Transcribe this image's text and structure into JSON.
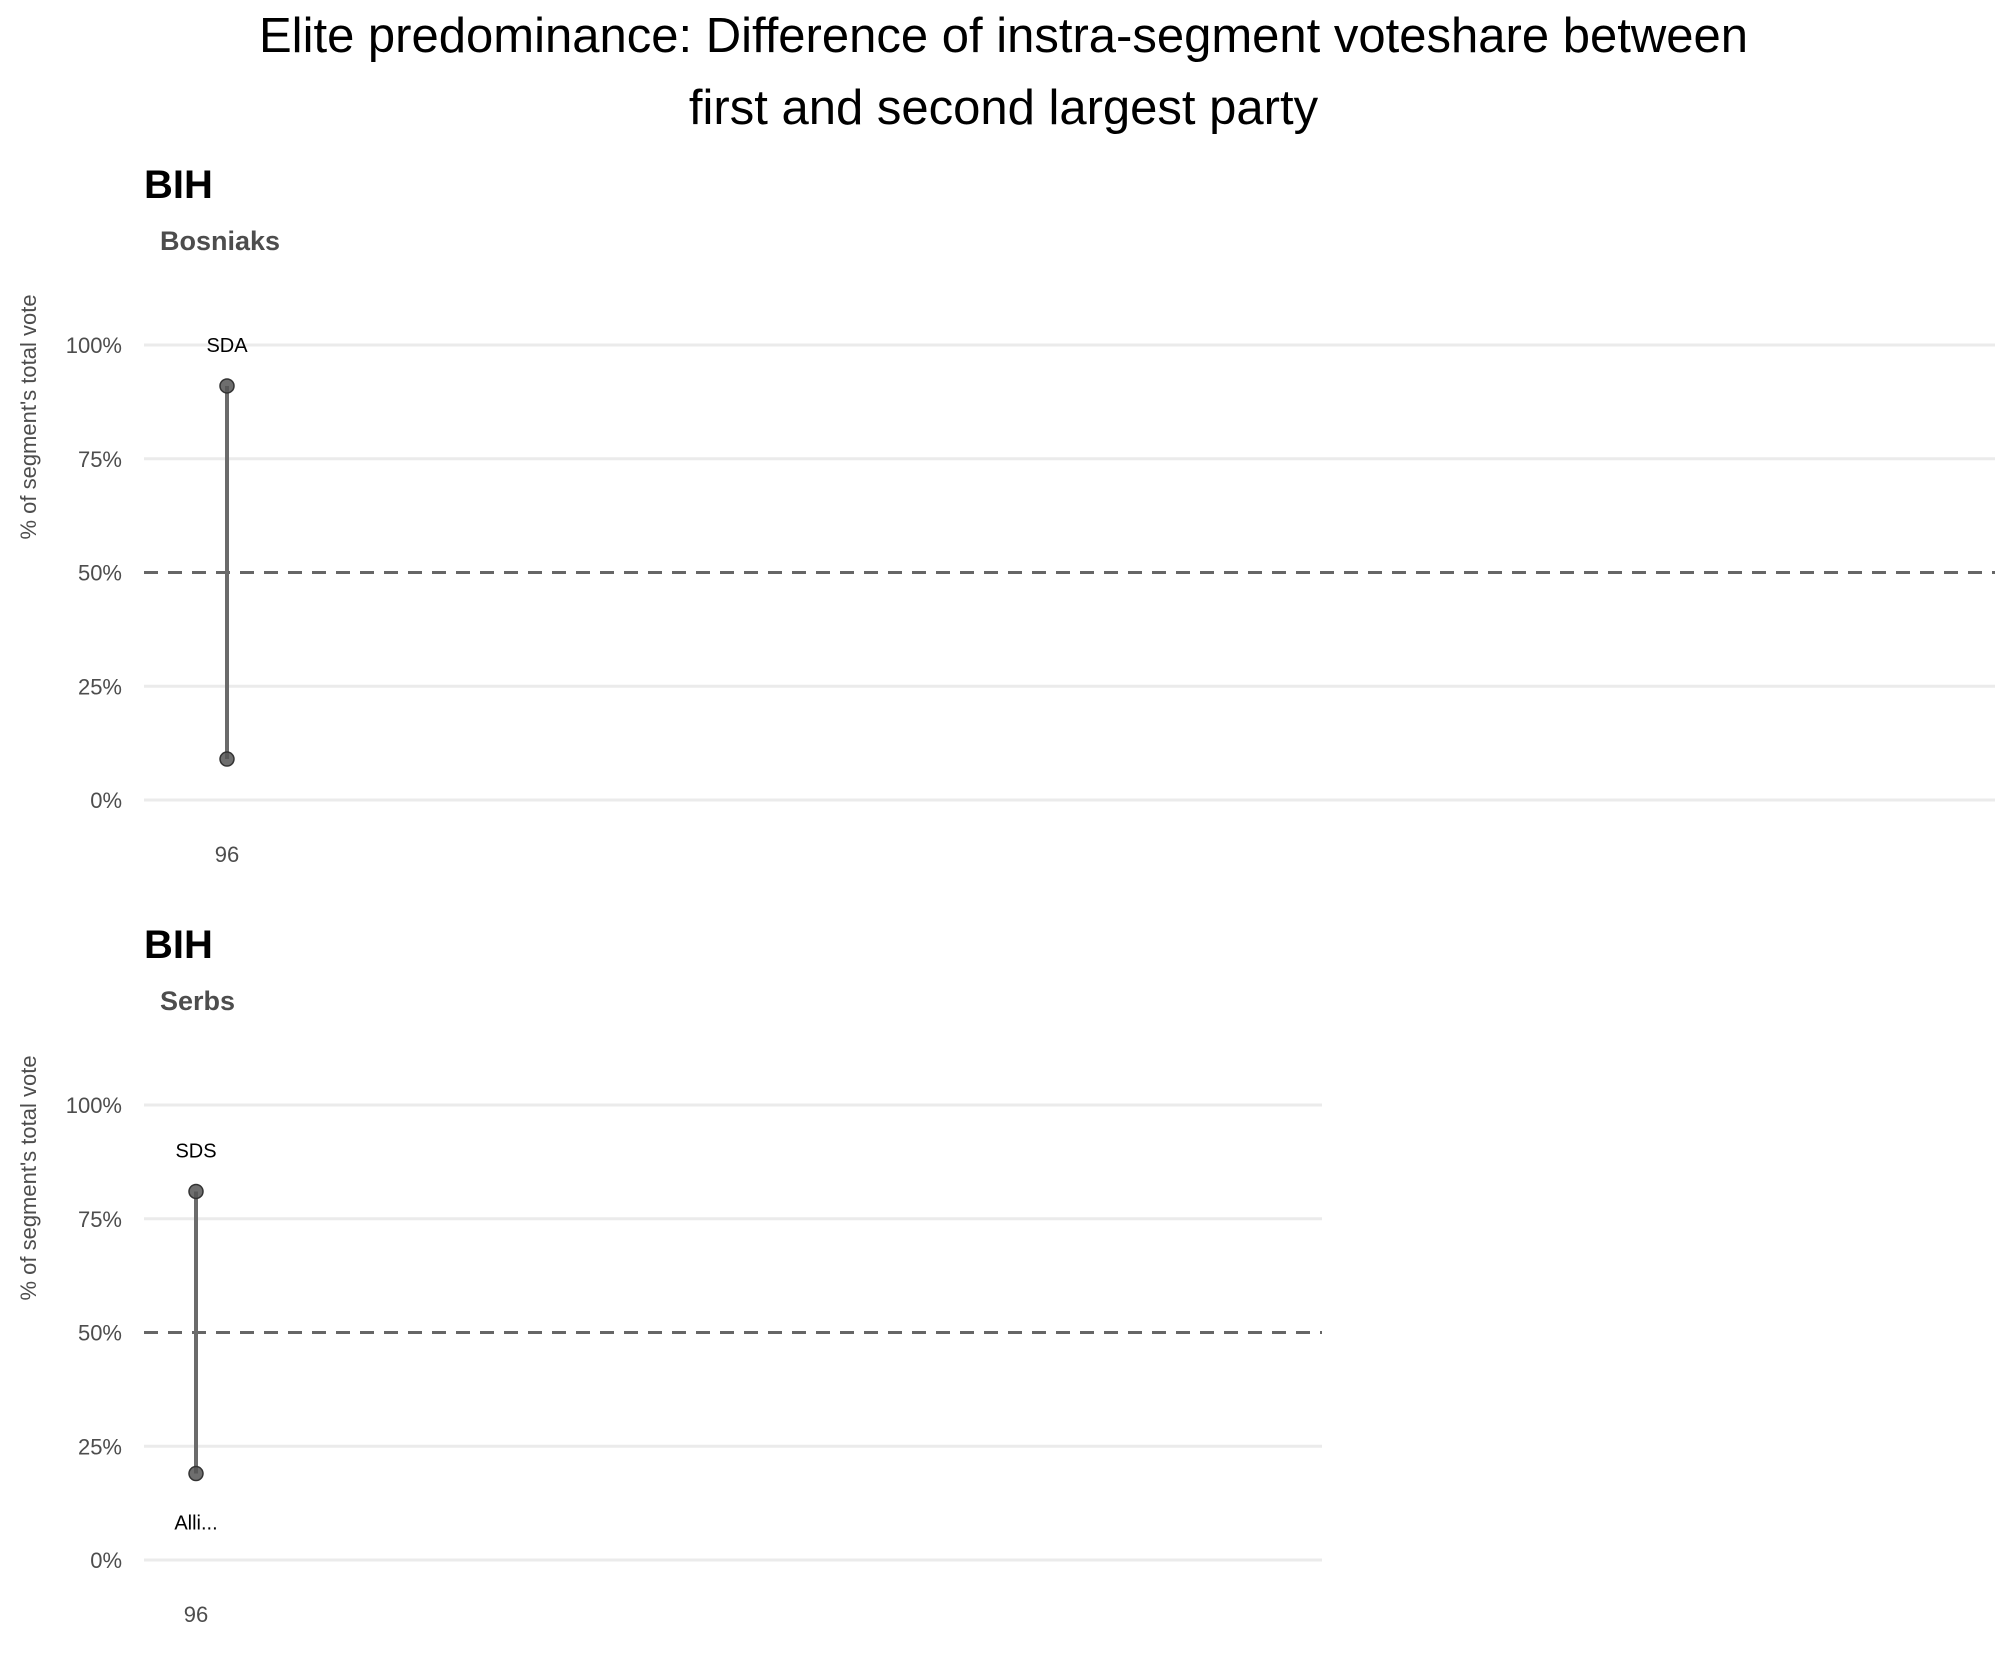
{
  "title_line1": "Elite predominance: Difference of instra-segment voteshare between",
  "title_line2": "first and second largest party",
  "colors": {
    "grid": "#ebebeb",
    "reference": "#666666",
    "segment": "#6b6b6b",
    "point": "#555555"
  },
  "chart_data": [
    {
      "type": "scatter",
      "title": "BIH",
      "subtitle": "Bosniaks",
      "ylabel": "% of segment's total vote",
      "ylim": [
        0,
        100
      ],
      "yticks": [
        "0%",
        "25%",
        "50%",
        "75%",
        "100%"
      ],
      "reference_line": 50,
      "x": [
        "96"
      ],
      "first_party": {
        "label": "SDA",
        "values": [
          91
        ]
      },
      "second_party": {
        "label": "",
        "values": [
          9
        ]
      }
    },
    {
      "type": "scatter",
      "title": "BIH",
      "subtitle": "Serbs",
      "ylabel": "% of segment's total vote",
      "ylim": [
        0,
        100
      ],
      "yticks": [
        "0%",
        "25%",
        "50%",
        "75%",
        "100%"
      ],
      "reference_line": 50,
      "x": [
        "96"
      ],
      "first_party": {
        "label": "SDS",
        "values": [
          81
        ]
      },
      "second_party": {
        "label": "Alli...",
        "values": [
          19
        ]
      }
    }
  ]
}
